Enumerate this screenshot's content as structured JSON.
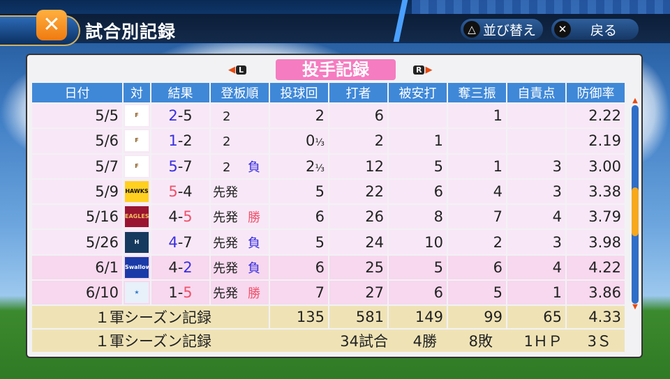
{
  "header": {
    "title": "試合別記録",
    "app_icon": "baseball-bat-icon"
  },
  "buttons": {
    "sort_glyph": "△",
    "sort_label": "並び替え",
    "back_glyph": "✕",
    "back_label": "戻る"
  },
  "tabs": {
    "current": "投手記録",
    "prev_key": "L",
    "next_key": "R"
  },
  "columns": [
    "日付",
    "対",
    "結果",
    "登板順",
    "投球回",
    "打者",
    "被安打",
    "奪三振",
    "自責点",
    "防御率"
  ],
  "rows": [
    {
      "date": "5/5",
      "opp": "Fighters",
      "logo": "F",
      "logo_bg": "#ffffff",
      "logo_fg": "#8a5a20",
      "r1": "2",
      "r2": "5",
      "win_side": "",
      "order": "2",
      "dec": "",
      "ip": "2",
      "ipf": "",
      "bf": "6",
      "h": "",
      "so": "1",
      "er": "",
      "era": "2.22"
    },
    {
      "date": "5/6",
      "opp": "Fighters",
      "logo": "F",
      "logo_bg": "#ffffff",
      "logo_fg": "#8a5a20",
      "r1": "1",
      "r2": "2",
      "order": "2",
      "dec": "",
      "ip": "0",
      "ipf": "⅓",
      "bf": "2",
      "h": "1",
      "so": "",
      "er": "",
      "era": "2.19"
    },
    {
      "date": "5/7",
      "opp": "Fighters",
      "logo": "F",
      "logo_bg": "#ffffff",
      "logo_fg": "#8a5a20",
      "r1": "5",
      "r2": "7",
      "order": "2",
      "dec": "負",
      "ip": "2",
      "ipf": "⅓",
      "bf": "12",
      "h": "5",
      "so": "1",
      "er": "3",
      "era": "3.00"
    },
    {
      "date": "5/9",
      "opp": "Hawks",
      "logo": "HAWKS",
      "logo_bg": "#ffd020",
      "logo_fg": "#111111",
      "r1": "5",
      "r2": "4",
      "order": "先発",
      "dec": "",
      "ip": "5",
      "ipf": "",
      "bf": "22",
      "h": "6",
      "so": "4",
      "er": "3",
      "era": "3.38"
    },
    {
      "date": "5/16",
      "opp": "Eagles",
      "logo": "EAGLES",
      "logo_bg": "#9a1530",
      "logo_fg": "#f5c060",
      "r1": "4",
      "r2": "5",
      "order": "先発",
      "dec": "勝",
      "ip": "6",
      "ipf": "",
      "bf": "26",
      "h": "8",
      "so": "7",
      "er": "4",
      "era": "3.79"
    },
    {
      "date": "5/26",
      "opp": "Fighters",
      "logo": "H",
      "logo_bg": "#163a5e",
      "logo_fg": "#ffffff",
      "r1": "4",
      "r2": "7",
      "order": "先発",
      "dec": "負",
      "ip": "5",
      "ipf": "",
      "bf": "24",
      "h": "10",
      "so": "2",
      "er": "3",
      "era": "3.98"
    },
    {
      "date": "6/1",
      "opp": "Swallows",
      "logo": "Swallows",
      "logo_bg": "#1a3aa8",
      "logo_fg": "#ffffff",
      "r1": "4",
      "r2": "2",
      "order": "先発",
      "dec": "負",
      "ip": "6",
      "ipf": "",
      "bf": "25",
      "h": "5",
      "so": "6",
      "er": "4",
      "era": "4.22"
    },
    {
      "date": "6/10",
      "opp": "BayStars",
      "logo": "★",
      "logo_bg": "#e8f0fa",
      "logo_fg": "#2a7ac8",
      "r1": "1",
      "r2": "5",
      "order": "先発",
      "dec": "勝",
      "ip": "7",
      "ipf": "",
      "bf": "27",
      "h": "6",
      "so": "5",
      "er": "1",
      "era": "3.86"
    }
  ],
  "season": {
    "label": "１軍シーズン記録",
    "ip": "135",
    "bf": "581",
    "h": "149",
    "so": "99",
    "er": "65",
    "era": "4.33"
  },
  "season2": {
    "label": "１軍シーズン記録",
    "games": "34試合",
    "wins": "4勝",
    "losses": "8敗",
    "hp": "1ＨＰ",
    "saves": "3Ｓ"
  },
  "colors": {
    "win": "#f0506a",
    "loss": "#3a2ee0",
    "header": "#3f88d8",
    "tab": "#f57cc0"
  }
}
